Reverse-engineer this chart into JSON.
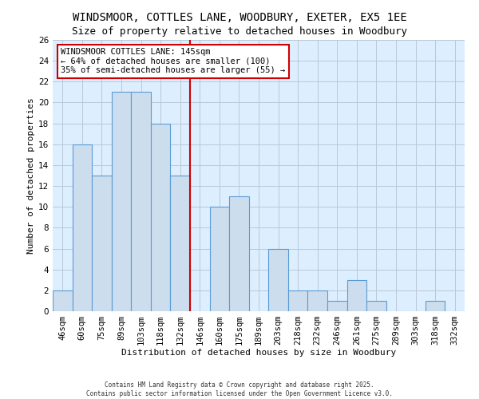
{
  "title": "WINDSMOOR, COTTLES LANE, WOODBURY, EXETER, EX5 1EE",
  "subtitle": "Size of property relative to detached houses in Woodbury",
  "xlabel": "Distribution of detached houses by size in Woodbury",
  "ylabel": "Number of detached properties",
  "bar_color": "#ccdded",
  "bar_edge_color": "#5b9bd5",
  "categories": [
    "46sqm",
    "60sqm",
    "75sqm",
    "89sqm",
    "103sqm",
    "118sqm",
    "132sqm",
    "146sqm",
    "160sqm",
    "175sqm",
    "189sqm",
    "203sqm",
    "218sqm",
    "232sqm",
    "246sqm",
    "261sqm",
    "275sqm",
    "289sqm",
    "303sqm",
    "318sqm",
    "332sqm"
  ],
  "values": [
    2,
    16,
    13,
    21,
    21,
    18,
    13,
    0,
    10,
    11,
    0,
    6,
    2,
    2,
    1,
    3,
    1,
    0,
    0,
    1,
    0
  ],
  "vline_pos": 7,
  "vline_color": "#cc0000",
  "ylim": [
    0,
    26
  ],
  "yticks": [
    0,
    2,
    4,
    6,
    8,
    10,
    12,
    14,
    16,
    18,
    20,
    22,
    24,
    26
  ],
  "annotation_title": "WINDSMOOR COTTLES LANE: 145sqm",
  "annotation_line2": "← 64% of detached houses are smaller (100)",
  "annotation_line3": "35% of semi-detached houses are larger (55) →",
  "annotation_box_color": "#ffffff",
  "annotation_box_edge": "#cc0000",
  "footer1": "Contains HM Land Registry data © Crown copyright and database right 2025.",
  "footer2": "Contains public sector information licensed under the Open Government Licence v3.0.",
  "bg_axes": "#ddeeff",
  "grid_color": "#b8c8d8",
  "title_fontsize": 10,
  "axis_label_fontsize": 8,
  "tick_fontsize": 7.5
}
